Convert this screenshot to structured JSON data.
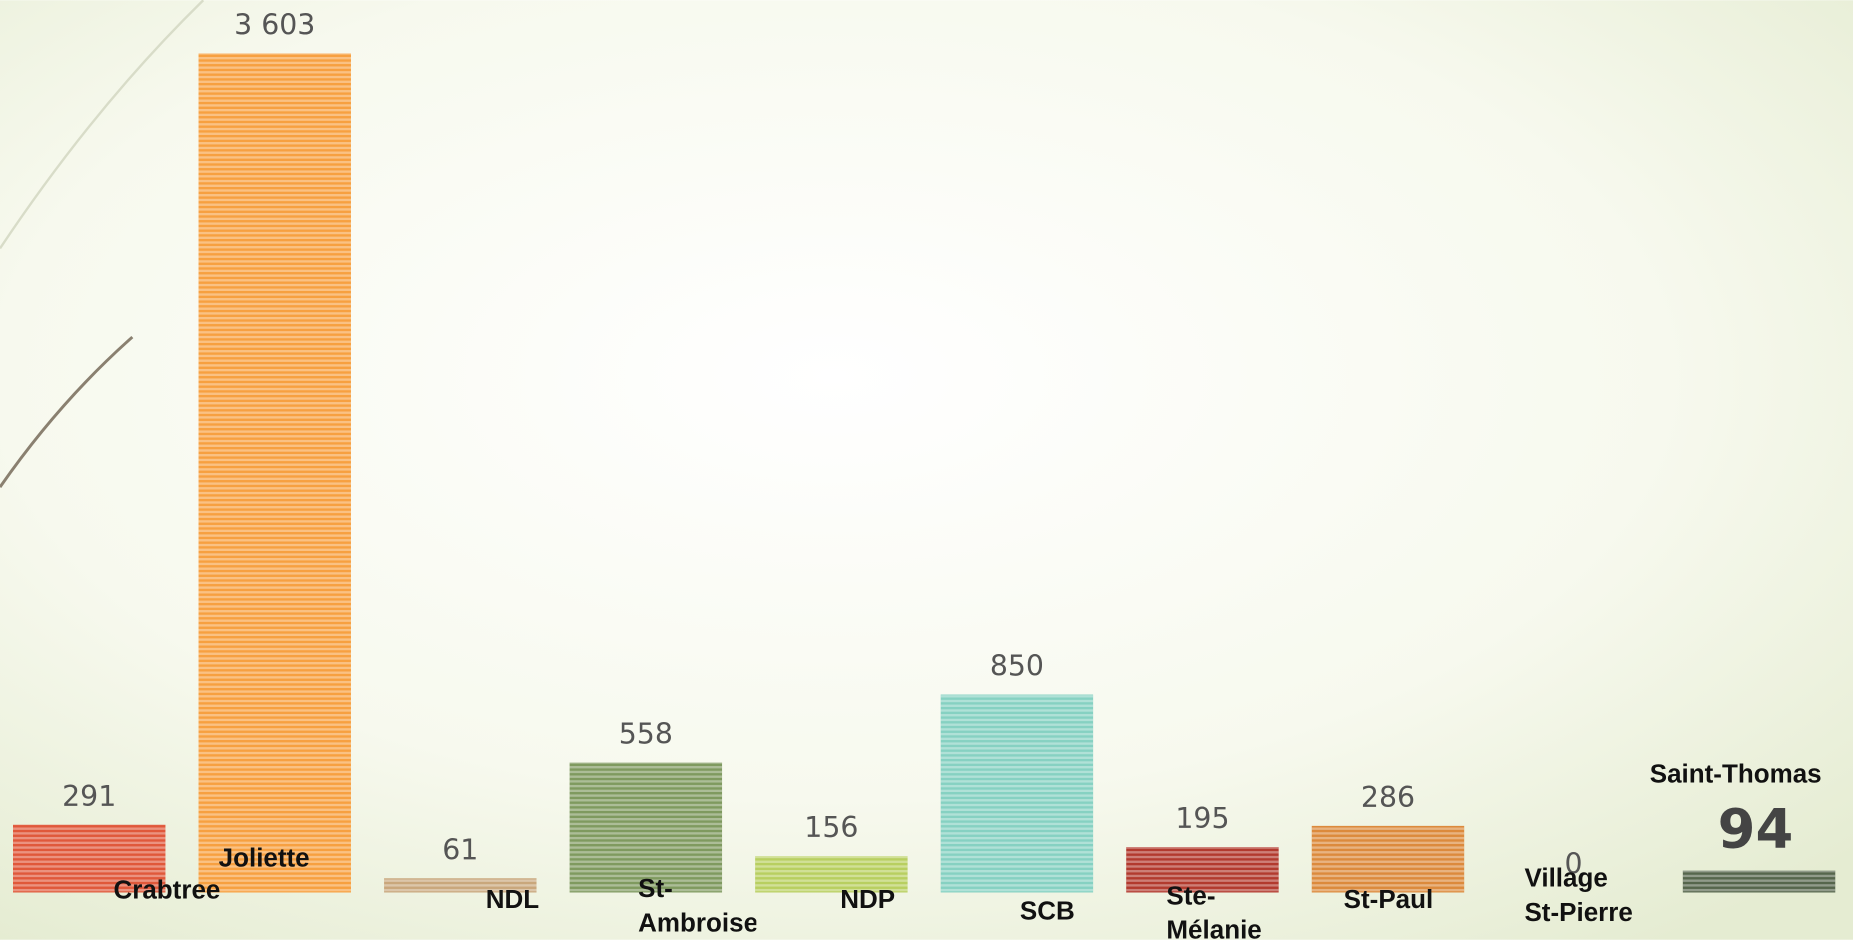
{
  "chart_data": {
    "type": "bar",
    "categories": [
      "Crabtree",
      "Joliette",
      "NDL",
      "St-Ambroise",
      "NDP",
      "SCB",
      "Ste-Mélanie",
      "St-Paul",
      "Village St-Pierre",
      "Saint-Thomas"
    ],
    "values": [
      291,
      3603,
      61,
      558,
      156,
      850,
      195,
      286,
      0,
      94
    ],
    "value_labels": [
      "291",
      "3 603",
      "61",
      "558",
      "156",
      "850",
      "195",
      "286",
      "0",
      "94"
    ],
    "colors": [
      "#e0583a",
      "#f7a040",
      "#c9a77c",
      "#7f9a5f",
      "#b8cf60",
      "#86d1c2",
      "#b23a2e",
      "#dc8a3c",
      "#8a9a70",
      "#56664c"
    ]
  }
}
